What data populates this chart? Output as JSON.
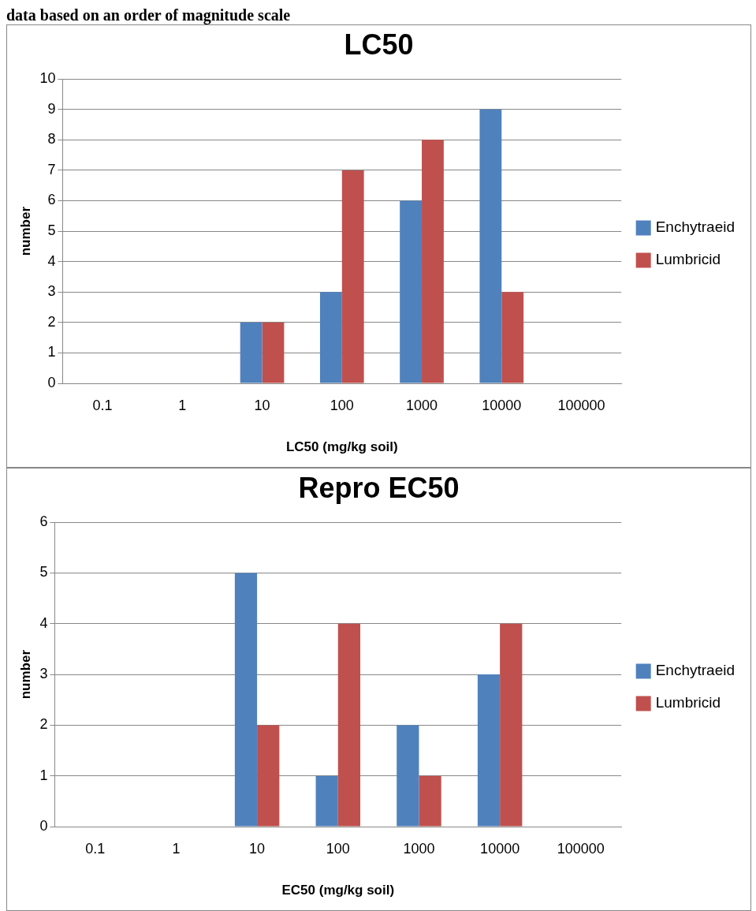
{
  "chart_data": [
    {
      "type": "bar",
      "title": "LC50",
      "xlabel": "LC50 (mg/kg soil)",
      "ylabel": "number",
      "annotations": [
        "data based on an order of magnitude scale"
      ],
      "categories": [
        "0.1",
        "1",
        "10",
        "100",
        "1000",
        "10000",
        "100000"
      ],
      "series": [
        {
          "name": "Enchytraeid",
          "color": "#4f81bd",
          "values": [
            0,
            0,
            2,
            3,
            6,
            9,
            0
          ]
        },
        {
          "name": "Lumbricid",
          "color": "#c0504d",
          "values": [
            0,
            0,
            2,
            7,
            8,
            3,
            0
          ]
        }
      ],
      "ylim": [
        0,
        10
      ],
      "yticks": [
        0,
        1,
        2,
        3,
        4,
        5,
        6,
        7,
        8,
        9,
        10
      ],
      "grid": "y",
      "legend": "right"
    },
    {
      "type": "bar",
      "title": "Repro EC50",
      "xlabel": "EC50 (mg/kg soil)",
      "ylabel": "number",
      "categories": [
        "0.1",
        "1",
        "10",
        "100",
        "1000",
        "10000",
        "100000"
      ],
      "series": [
        {
          "name": "Enchytraeid",
          "color": "#4f81bd",
          "values": [
            0,
            0,
            5,
            1,
            2,
            3,
            0
          ]
        },
        {
          "name": "Lumbricid",
          "color": "#c0504d",
          "values": [
            0,
            0,
            2,
            4,
            1,
            4,
            0
          ]
        }
      ],
      "ylim": [
        0,
        6
      ],
      "yticks": [
        0,
        1,
        2,
        3,
        4,
        5,
        6
      ],
      "grid": "y",
      "legend": "right"
    }
  ]
}
